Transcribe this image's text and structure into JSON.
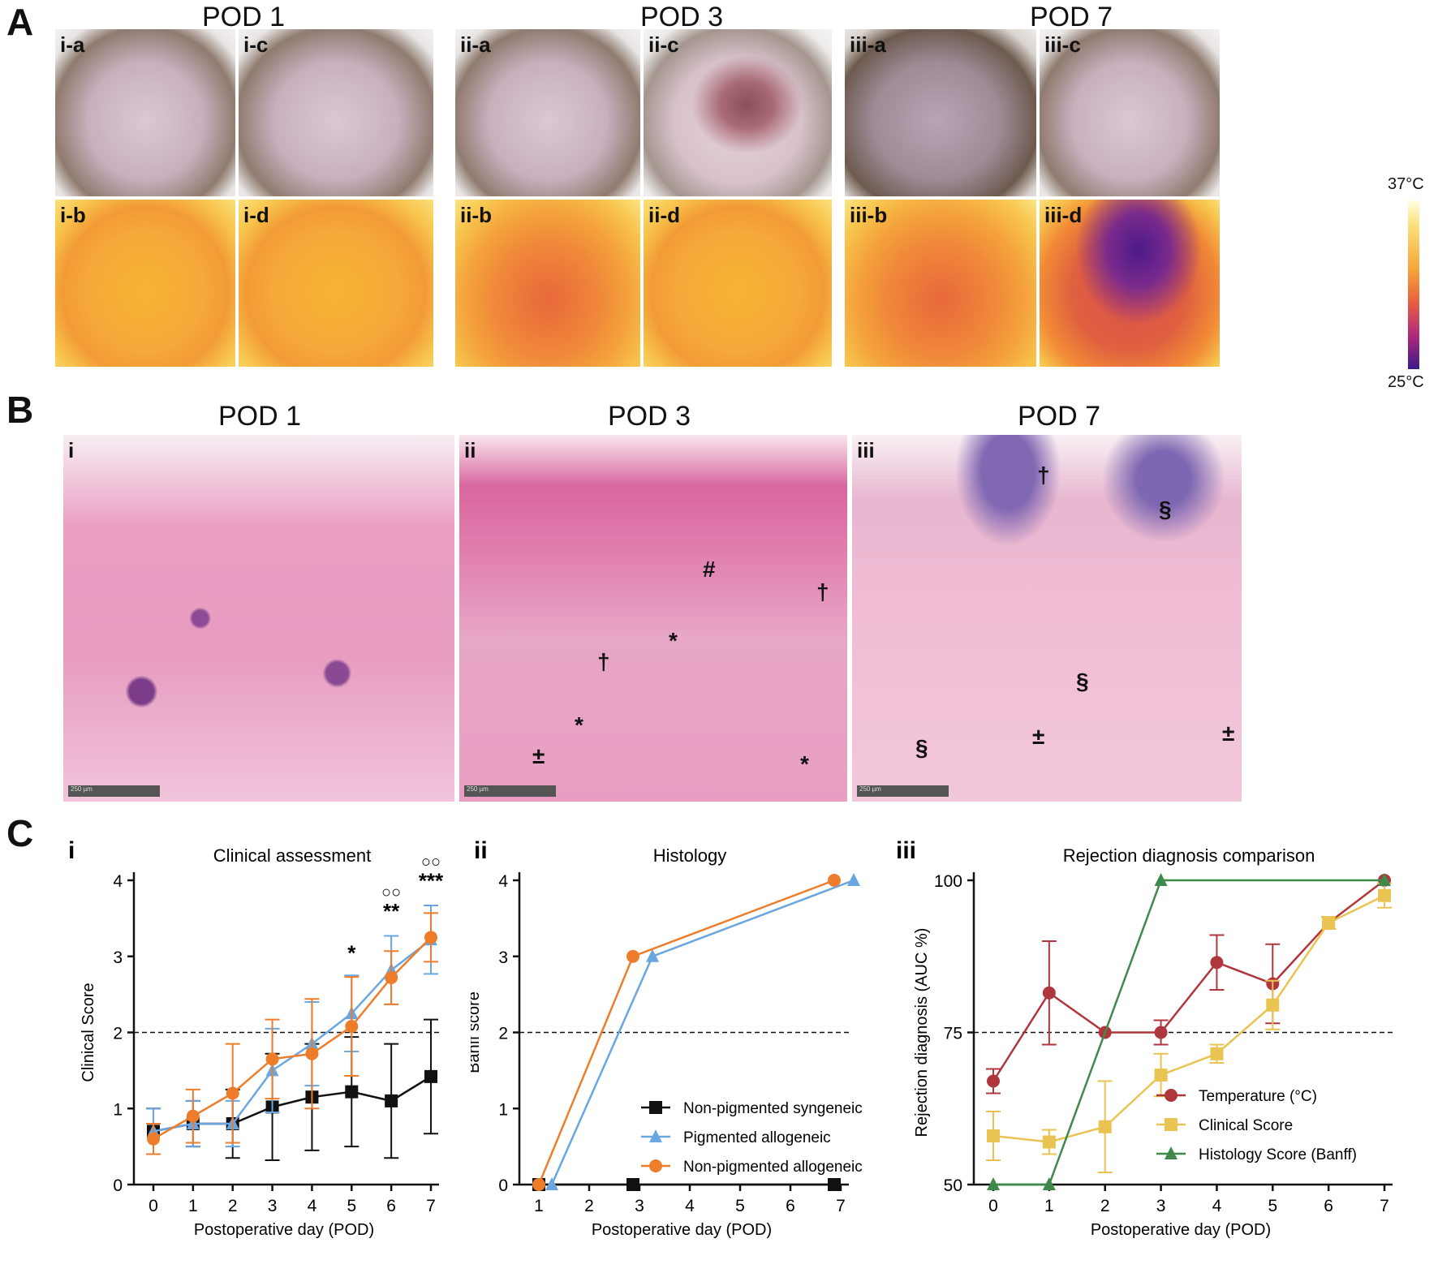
{
  "panels": {
    "A": {
      "letter": "A",
      "groups": [
        {
          "title": "POD 1",
          "labels": [
            "i-a",
            "i-c",
            "i-b",
            "i-d"
          ]
        },
        {
          "title": "POD 3",
          "labels": [
            "ii-a",
            "ii-c",
            "ii-b",
            "ii-d"
          ]
        },
        {
          "title": "POD 7",
          "labels": [
            "iii-a",
            "iii-c",
            "iii-b",
            "iii-d"
          ]
        }
      ],
      "colorbar": {
        "max_label": "37°C",
        "min_label": "25°C"
      }
    },
    "B": {
      "letter": "B",
      "images": [
        {
          "title": "POD 1",
          "label": "i",
          "scale": "250 µm"
        },
        {
          "title": "POD 3",
          "label": "ii",
          "scale": "250 µm"
        },
        {
          "title": "POD 7",
          "label": "iii",
          "scale": "250 µm"
        }
      ],
      "symbols": {
        "hash": "#",
        "dagger": "†",
        "star": "*",
        "plusminus": "±",
        "section": "§"
      }
    },
    "C": {
      "letter": "C"
    }
  },
  "chart_data": [
    {
      "type": "line",
      "label": "i",
      "title": "Clinical assessment",
      "xlabel": "Postoperative day (POD)",
      "ylabel": "Clinical Score",
      "xlim": [
        0,
        7
      ],
      "ylim": [
        0,
        4
      ],
      "x_ticks": [
        "0",
        "1",
        "2",
        "3",
        "4",
        "5",
        "6",
        "7"
      ],
      "y_ticks": [
        "0",
        "1",
        "2",
        "3",
        "4"
      ],
      "threshold": 2,
      "series": [
        {
          "color": "#111111",
          "marker": "square",
          "x": [
            0,
            1,
            2,
            3,
            4,
            5,
            6,
            7
          ],
          "values": [
            0.7,
            0.8,
            0.8,
            1.02,
            1.15,
            1.22,
            1.1,
            1.42
          ],
          "err": [
            0.3,
            0.3,
            0.45,
            0.7,
            0.7,
            0.72,
            0.75,
            0.75
          ]
        },
        {
          "color": "#6aa6e0",
          "marker": "triangle",
          "x": [
            0,
            1,
            2,
            3,
            4,
            5,
            6,
            7
          ],
          "values": [
            0.7,
            0.8,
            0.8,
            1.5,
            1.85,
            2.25,
            2.82,
            3.22
          ],
          "err": [
            0.3,
            0.3,
            0.3,
            0.55,
            0.55,
            0.5,
            0.45,
            0.45
          ]
        },
        {
          "color": "#ee7d2b",
          "marker": "circle",
          "x": [
            0,
            1,
            2,
            3,
            4,
            5,
            6,
            7
          ],
          "values": [
            0.6,
            0.9,
            1.2,
            1.65,
            1.72,
            2.08,
            2.72,
            3.25
          ],
          "err": [
            0.2,
            0.35,
            0.65,
            0.52,
            0.72,
            0.65,
            0.35,
            0.32
          ]
        }
      ],
      "annotations": [
        {
          "x": 5,
          "text": "*"
        },
        {
          "x": 6,
          "text": "**",
          "top": "○○"
        },
        {
          "x": 7,
          "text": "***",
          "top": "○○"
        }
      ]
    },
    {
      "type": "line",
      "label": "ii",
      "title": "Histology",
      "xlabel": "Postoperative day (POD)",
      "ylabel": "Banff score",
      "xlim": [
        1,
        7
      ],
      "ylim": [
        0,
        4
      ],
      "x_ticks": [
        "1",
        "2",
        "3",
        "4",
        "5",
        "6",
        "7"
      ],
      "y_ticks": [
        "0",
        "1",
        "2",
        "3",
        "4"
      ],
      "threshold": 2,
      "series": [
        {
          "name": "Non-pigmented syngeneic",
          "color": "#111111",
          "marker": "square",
          "x": [
            1,
            3,
            7
          ],
          "values": [
            0,
            0,
            0
          ]
        },
        {
          "name": "Pigmented allogeneic",
          "color": "#6aa6e0",
          "marker": "triangle",
          "x": [
            1,
            3,
            7
          ],
          "values": [
            0,
            3,
            4
          ]
        },
        {
          "name": "Non-pigmented allogeneic",
          "color": "#ee7d2b",
          "marker": "circle",
          "x": [
            1,
            3,
            7
          ],
          "values": [
            0,
            3,
            4
          ]
        }
      ],
      "legend": "bottom-right"
    },
    {
      "type": "line",
      "label": "iii",
      "title": "Rejection diagnosis comparison",
      "xlabel": "Postoperative day (POD)",
      "ylabel": "Rejection diagnosis (AUC %)",
      "xlim": [
        0,
        7
      ],
      "ylim": [
        50,
        100
      ],
      "x_ticks": [
        "0",
        "1",
        "2",
        "3",
        "4",
        "5",
        "6",
        "7"
      ],
      "y_ticks": [
        "50",
        "75",
        "100"
      ],
      "threshold": 75,
      "series": [
        {
          "name": "Temperature (°C)",
          "color": "#b0363d",
          "marker": "circle",
          "x": [
            0,
            1,
            2,
            3,
            4,
            5,
            6,
            7
          ],
          "values": [
            67,
            81.5,
            75,
            75,
            86.5,
            83,
            93,
            100
          ],
          "err": [
            2,
            8.5,
            0,
            2,
            4.5,
            6.5,
            1,
            0
          ]
        },
        {
          "name": "Clinical Score",
          "color": "#e9c452",
          "marker": "square",
          "x": [
            0,
            1,
            2,
            3,
            4,
            5,
            6,
            7
          ],
          "values": [
            58,
            57,
            59.5,
            68,
            71.5,
            79.5,
            93,
            97.5
          ],
          "err": [
            4,
            2,
            7.5,
            3.5,
            1.5,
            4,
            1,
            2
          ]
        },
        {
          "name": "Histology Score (Banff)",
          "color": "#3f8a4a",
          "marker": "triangle",
          "x": [
            0,
            1,
            3,
            7
          ],
          "values": [
            50,
            50,
            100,
            100
          ]
        }
      ],
      "legend": "bottom-right"
    }
  ]
}
